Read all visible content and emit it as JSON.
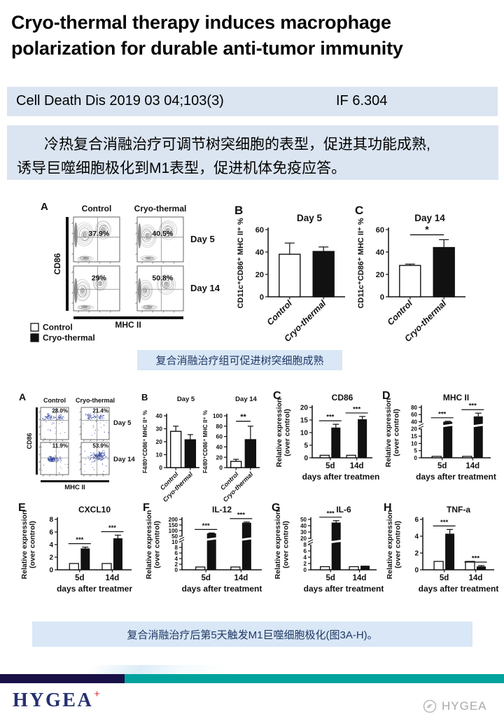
{
  "title": "Cryo-thermal therapy induces macrophage polarization for durable anti-tumor immunity",
  "citation": {
    "reference": "Cell Death Dis 2019 03 04;103(3)",
    "impact_factor": "IF 6.304"
  },
  "summary_cn": {
    "line1": "冷热复合消融治疗可调节树突细胞的表型，促进其功能成熟,",
    "line2": "诱导巨噬细胞极化到M1表型，促进机体免疫应答。"
  },
  "captions": {
    "fig1": "复合消融治疗组可促进树突细胞成熟",
    "fig2": "复合消融治疗后第5天触发M1巨噬细胞极化(图3A-H)。"
  },
  "figure1": {
    "panelA": {
      "label": "A",
      "columns": [
        "Control",
        "Cryo-thermal"
      ],
      "rows": [
        "Day 5",
        "Day 14"
      ],
      "xaxis_label": "MHC II",
      "yaxis_label": "CD86",
      "percentages": [
        [
          "37.9%",
          "40.5%"
        ],
        [
          "29%",
          "50.8%"
        ]
      ],
      "legend": [
        {
          "label": "Control",
          "fill": "#ffffff"
        },
        {
          "label": "Cryo-thermal",
          "fill": "#111111"
        }
      ]
    },
    "panelB": {
      "label": "B",
      "type": "pair",
      "title": "Day 5",
      "ylabel": "CD11c⁺CD86⁺ MHC II⁺ %",
      "yticks": [
        0,
        20,
        40,
        60
      ],
      "bars": [
        {
          "label": "Control",
          "value": 38,
          "err_top": 48,
          "fill": "#ffffff"
        },
        {
          "label": "Cryo-thermal",
          "value": 40.5,
          "err_top": 44.5,
          "fill": "#111111"
        }
      ],
      "sig_span": null
    },
    "panelC": {
      "label": "C",
      "type": "pair",
      "title": "Day 14",
      "ylabel": "CD11c⁺CD86⁺ MHC II⁺ %",
      "yticks": [
        0,
        20,
        40,
        60
      ],
      "bars": [
        {
          "label": "Control",
          "value": 28,
          "err_top": 29.2,
          "fill": "#ffffff"
        },
        {
          "label": "Cryo-thermal",
          "value": 44,
          "err_top": 51,
          "fill": "#111111"
        }
      ],
      "sig_span": "*"
    }
  },
  "figure2": {
    "panelA": {
      "label": "A",
      "columns": [
        "Control",
        "Cryo-thermal"
      ],
      "rows": [
        "Day 5",
        "Day 14"
      ],
      "xaxis_label": "MHC II",
      "yaxis_label": "CD86",
      "percentages": [
        [
          "28.0%",
          "21.4%"
        ],
        [
          "11.9%",
          "53.9%"
        ]
      ]
    },
    "panelB_day5": {
      "label": "B",
      "type": "pair",
      "title": "Day 5",
      "ylabel": "F4/80⁺CD86⁺ MHC II⁺ %",
      "yticks": [
        0,
        10,
        20,
        30,
        40
      ],
      "bars": [
        {
          "label": "Control",
          "value": 28,
          "err_top": 32,
          "fill": "#ffffff"
        },
        {
          "label": "Cryo-thermal",
          "value": 21.5,
          "err_top": 25.5,
          "fill": "#111111"
        }
      ],
      "sig_span": null
    },
    "panelB_day14": {
      "label": "",
      "type": "pair",
      "title": "Day 14",
      "ylabel": "F4/80⁺CD86⁺ MHC II⁺ %",
      "yticks": [
        0,
        20,
        40,
        60,
        80,
        100
      ],
      "bars": [
        {
          "label": "Control",
          "value": 12,
          "err_top": 16,
          "fill": "#ffffff"
        },
        {
          "label": "Cryo-thermal",
          "value": 54,
          "err_top": 80,
          "fill": "#111111"
        }
      ],
      "sig_span": "**"
    },
    "panelC": {
      "label": "C",
      "type": "grouped",
      "title": "CD86",
      "ylabel": [
        "Relative expression",
        "(over control)"
      ],
      "yticks": [
        0,
        5,
        10,
        15,
        20
      ],
      "break_after_tick": null,
      "xlabel": "days after treatment",
      "groups": [
        {
          "label": "5d",
          "control": 1,
          "treated": 12,
          "err_top": 13.3,
          "sig": "***"
        },
        {
          "label": "14d",
          "control": 1,
          "treated": 15.3,
          "err_top": 16.4,
          "sig": "***"
        }
      ]
    },
    "panelD": {
      "label": "D",
      "type": "grouped",
      "title": "MHC II",
      "ylabel": [
        "Relative expression",
        "(over control)"
      ],
      "yticks": [
        0,
        5,
        10,
        15,
        20,
        40,
        60,
        80
      ],
      "break_after_tick": 4,
      "xlabel": "days after treatment",
      "groups": [
        {
          "label": "5d",
          "control": 1,
          "treated": 40,
          "err_top": 41.5,
          "sig": "***"
        },
        {
          "label": "14d",
          "control": 1,
          "treated": 55,
          "err_top": 64,
          "sig": "***"
        }
      ]
    },
    "panelE": {
      "label": "E",
      "type": "grouped",
      "title": "CXCL10",
      "ylabel": [
        "Relative expression",
        "(over control)"
      ],
      "yticks": [
        0,
        2,
        4,
        6,
        8
      ],
      "break_after_tick": null,
      "xlabel": "days after treatmer",
      "groups": [
        {
          "label": "5d",
          "control": 1,
          "treated": 3.4,
          "err_top": 3.6,
          "sig": "***"
        },
        {
          "label": "14d",
          "control": 1,
          "treated": 5.0,
          "err_top": 5.5,
          "sig": "***"
        }
      ]
    },
    "panelF": {
      "label": "F",
      "type": "grouped",
      "title": "IL-12",
      "ylabel": [
        "Relative expression",
        "(over control)"
      ],
      "yticks": [
        0,
        2,
        4,
        6,
        8,
        10,
        50,
        100,
        150,
        200
      ],
      "break_after_tick": 5,
      "xlabel": "days after treatment",
      "groups": [
        {
          "label": "5d",
          "control": 1,
          "treated": 75,
          "err_top": 79,
          "sig": "***"
        },
        {
          "label": "14d",
          "control": 1,
          "treated": 170,
          "err_top": 176,
          "sig": "***"
        }
      ]
    },
    "panelG": {
      "label": "G",
      "type": "grouped",
      "title": "IL-6",
      "ylabel": [
        "Relative expression",
        "(over control)"
      ],
      "yticks": [
        0,
        2,
        4,
        6,
        8,
        20,
        30,
        40,
        50
      ],
      "break_after_tick": 4,
      "xlabel": "days after treatment",
      "groups": [
        {
          "label": "5d",
          "control": 1,
          "treated": 45,
          "err_top": 48,
          "sig": "***"
        },
        {
          "label": "14d",
          "control": 1,
          "treated": 1.3,
          "err_top": 1.3,
          "sig": ""
        }
      ]
    },
    "panelH": {
      "label": "H",
      "type": "grouped",
      "title": "TNF-a",
      "ylabel": [
        "Relative expression",
        "(over control)"
      ],
      "yticks": [
        0,
        2,
        4,
        6
      ],
      "break_after_tick": null,
      "xlabel": "days after treatment",
      "groups": [
        {
          "label": "5d",
          "control": 1,
          "treated": 4.3,
          "err_top": 4.8,
          "sig": "***"
        },
        {
          "label": "14d",
          "control": 1,
          "treated": 0.4,
          "err_top": 0.5,
          "sig": "***"
        }
      ]
    }
  },
  "footer": {
    "logo_text": "HYGEA",
    "logo_plus": "+",
    "watermark_text": "HYGEA",
    "colors": {
      "navy_bar": "#191048",
      "teal_bar": "#00a39c",
      "logo_navy": "#26306e",
      "logo_red": "#d93025"
    }
  }
}
